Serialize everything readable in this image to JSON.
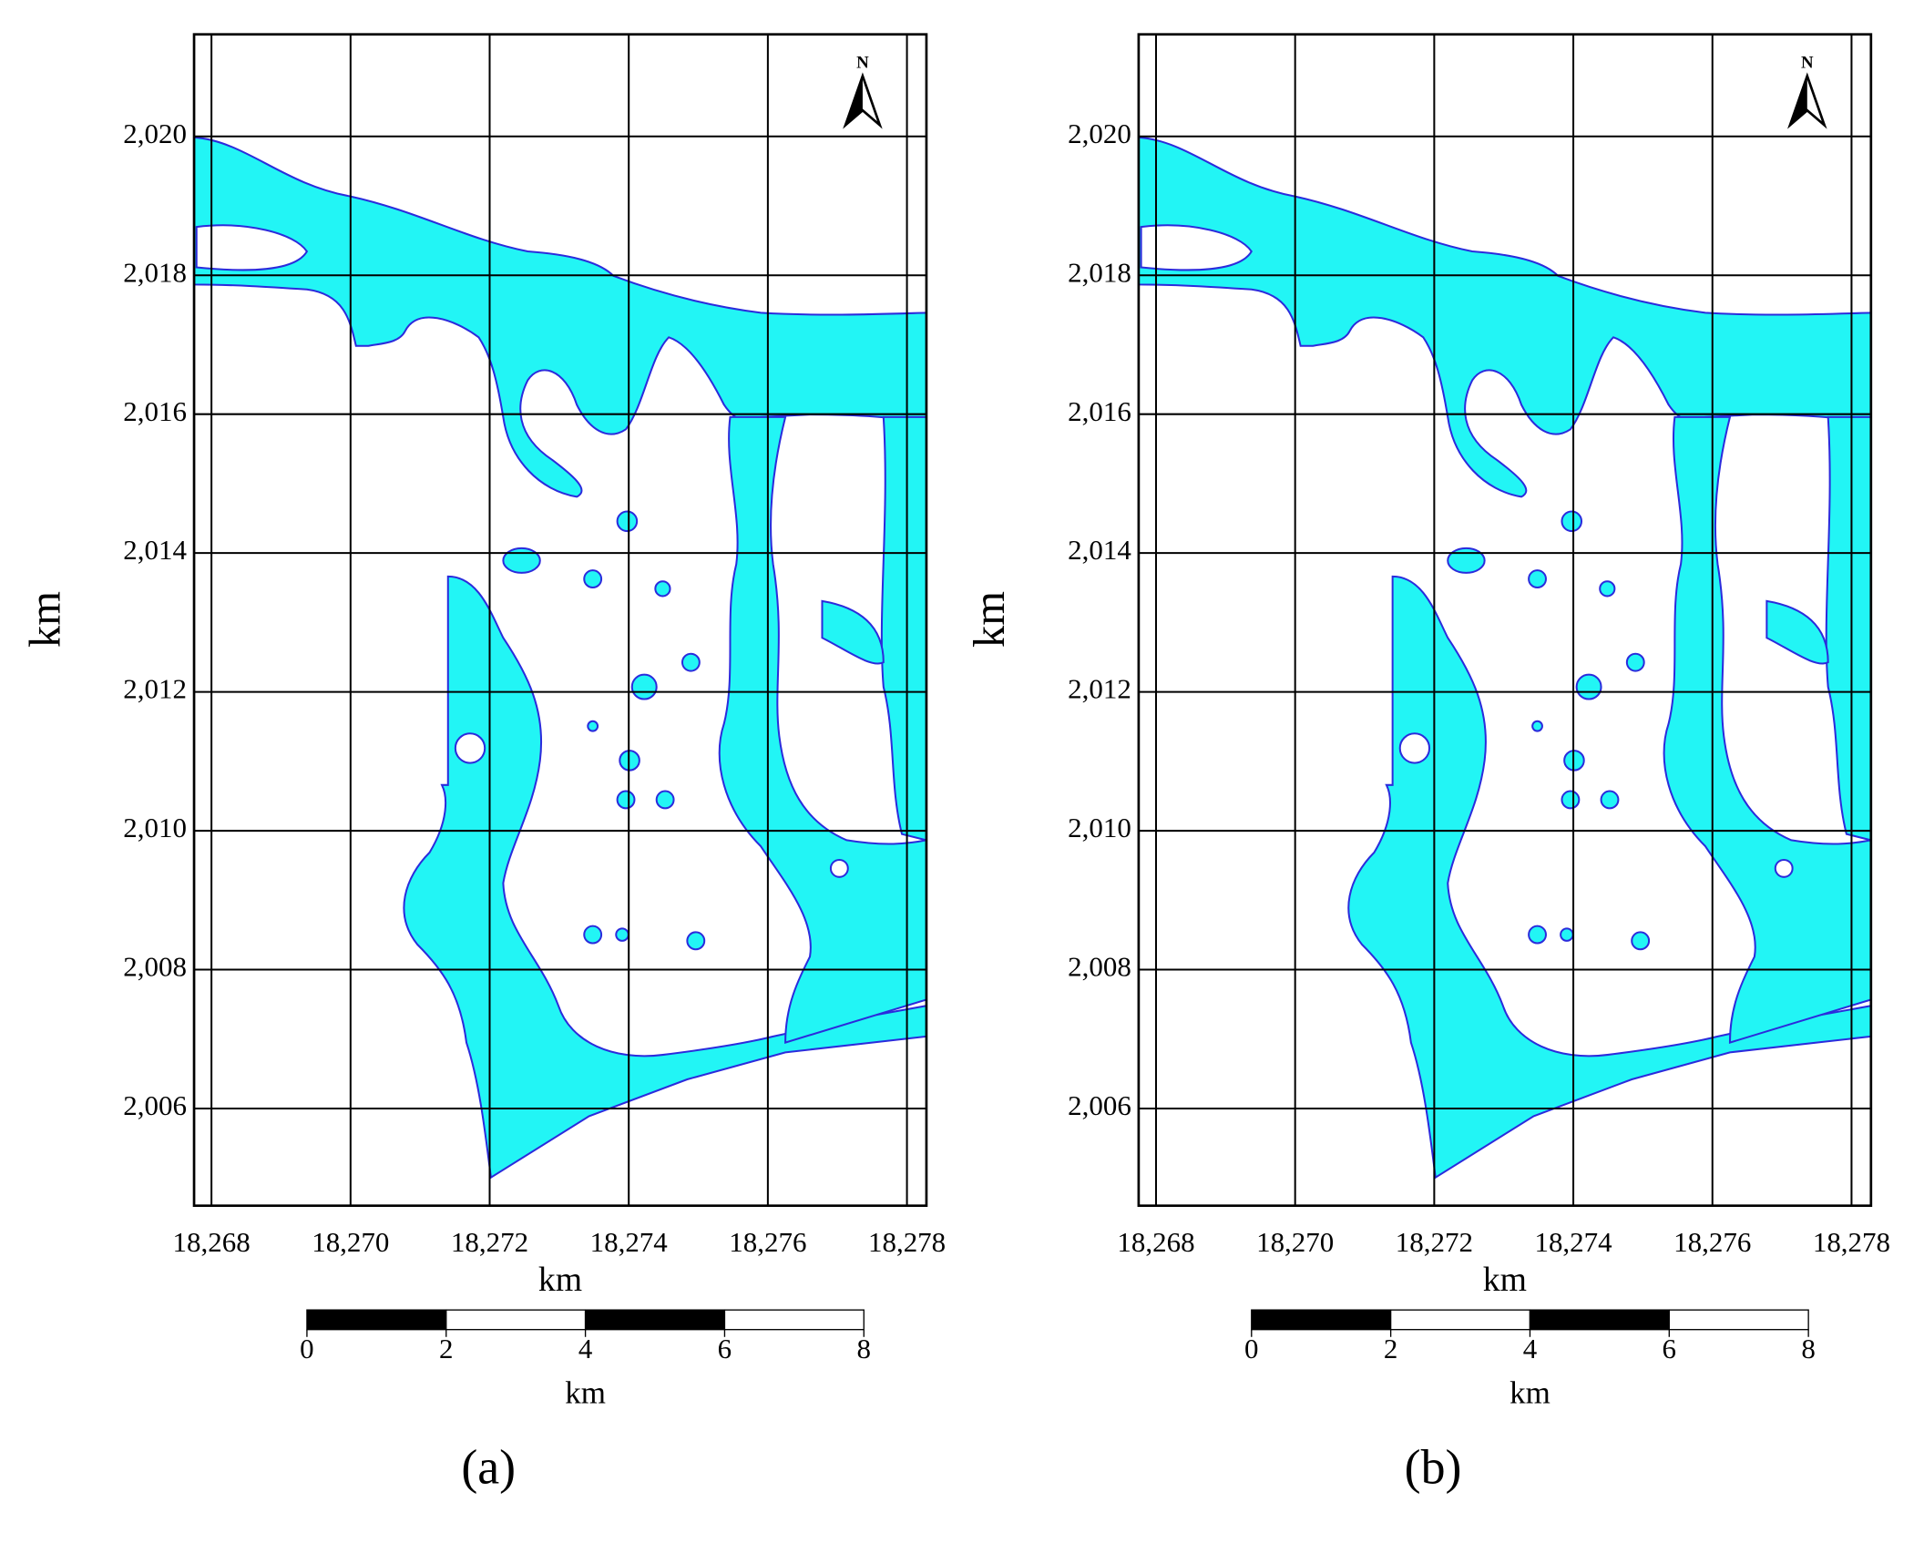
{
  "figure": {
    "panels": [
      {
        "caption": "(a)",
        "xlabel": "km",
        "ylabel": "km",
        "north": "N",
        "xlim": [
          18267.75,
          18278.28
        ],
        "ylim": [
          2004.6,
          2021.47
        ],
        "xticks": [
          {
            "value": 18268,
            "label": "18,268"
          },
          {
            "value": 18270,
            "label": "18,270"
          },
          {
            "value": 18272,
            "label": "18,272"
          },
          {
            "value": 18274,
            "label": "18,274"
          },
          {
            "value": 18276,
            "label": "18,276"
          },
          {
            "value": 18278,
            "label": "18,278"
          }
        ],
        "yticks": [
          {
            "value": 2006,
            "label": "2,006"
          },
          {
            "value": 2008,
            "label": "2,008"
          },
          {
            "value": 2010,
            "label": "2,010"
          },
          {
            "value": 2012,
            "label": "2,012"
          },
          {
            "value": 2014,
            "label": "2,014"
          },
          {
            "value": 2016,
            "label": "2,016"
          },
          {
            "value": 2018,
            "label": "2,018"
          },
          {
            "value": 2020,
            "label": "2,020"
          }
        ],
        "scale_bar": {
          "ticks": [
            0,
            2,
            4,
            6,
            8
          ],
          "unit": "km"
        }
      },
      {
        "caption": "(b)",
        "xlabel": "km",
        "ylabel": "km",
        "north": "N",
        "xlim": [
          18267.75,
          18278.28
        ],
        "ylim": [
          2004.6,
          2021.47
        ],
        "xticks": [
          {
            "value": 18268,
            "label": "18,268"
          },
          {
            "value": 18270,
            "label": "18,270"
          },
          {
            "value": 18272,
            "label": "18,272"
          },
          {
            "value": 18274,
            "label": "18,274"
          },
          {
            "value": 18276,
            "label": "18,276"
          },
          {
            "value": 18278,
            "label": "18,278"
          }
        ],
        "yticks": [
          {
            "value": 2006,
            "label": "2,006"
          },
          {
            "value": 2008,
            "label": "2,008"
          },
          {
            "value": 2010,
            "label": "2,010"
          },
          {
            "value": 2012,
            "label": "2,012"
          },
          {
            "value": 2014,
            "label": "2,014"
          },
          {
            "value": 2016,
            "label": "2,016"
          },
          {
            "value": 2018,
            "label": "2,018"
          },
          {
            "value": 2020,
            "label": "2,020"
          }
        ],
        "scale_bar": {
          "ticks": [
            0,
            2,
            4,
            6,
            8
          ],
          "unit": "km"
        }
      }
    ]
  }
}
